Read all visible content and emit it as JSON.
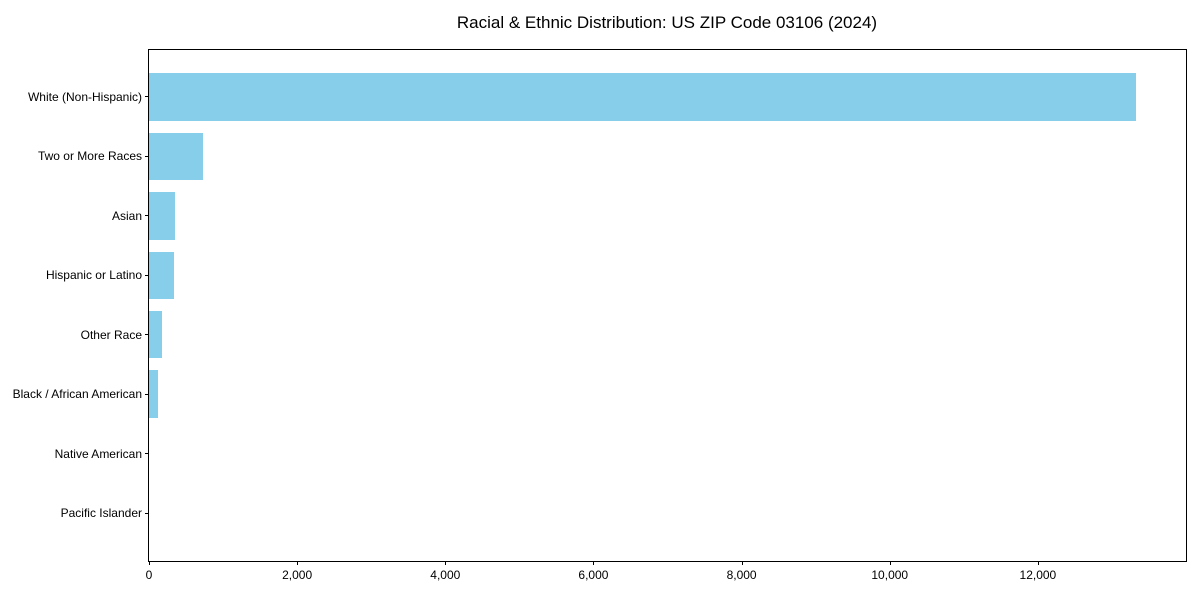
{
  "chart_data": {
    "type": "bar",
    "orientation": "horizontal",
    "title": "Racial & Ethnic Distribution: US ZIP Code 03106 (2024)",
    "categories": [
      "White (Non-Hispanic)",
      "Two or More Races",
      "Asian",
      "Hispanic or Latino",
      "Other Race",
      "Black / African American",
      "Native American",
      "Pacific Islander"
    ],
    "values": [
      13320,
      730,
      350,
      340,
      170,
      120,
      0,
      0
    ],
    "title_note": "",
    "xlabel": "",
    "ylabel": "",
    "x_ticks": [
      0,
      2000,
      4000,
      6000,
      8000,
      10000,
      12000
    ],
    "x_tick_labels": [
      "0",
      "2,000",
      "4,000",
      "6,000",
      "8,000",
      "10,000",
      "12,000"
    ],
    "xlim": [
      0,
      13986
    ],
    "bar_color": "#87CEEB",
    "axis_color": "#000000",
    "text_color": "#000000",
    "grid": false,
    "legend_position": "none",
    "largest_category_on_top": true
  }
}
